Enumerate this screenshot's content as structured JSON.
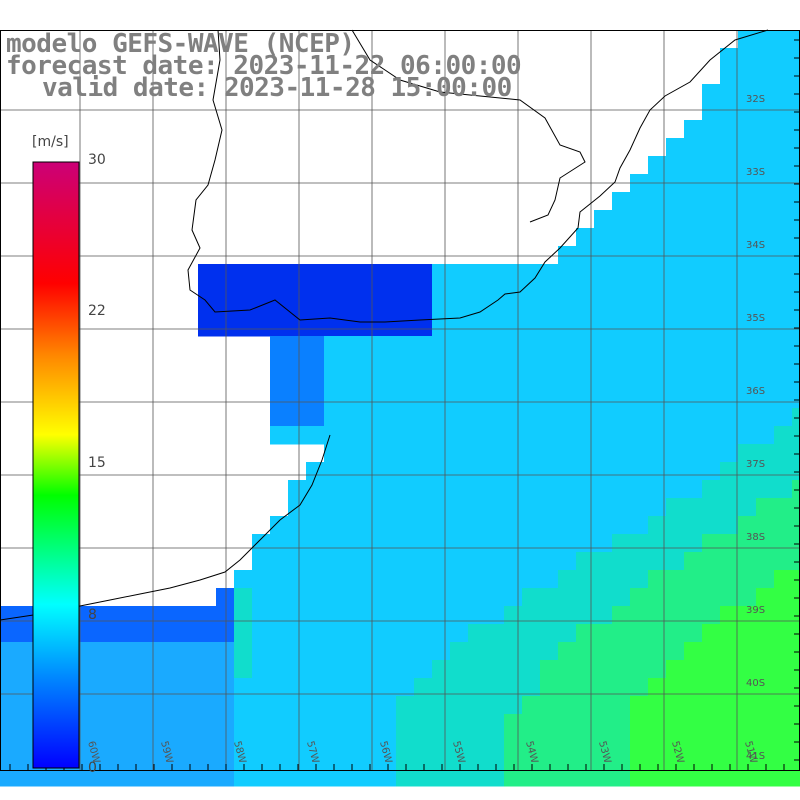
{
  "title": {
    "model": "modelo GEFS-WAVE (NCEP)",
    "forecast": "forecast date: 2023-11-22 06:00:00",
    "valid": "valid date: 2023-11-28 15:00:00"
  },
  "colorbar": {
    "unit": "[m/s]",
    "range": [
      0,
      30
    ],
    "ticks": [
      {
        "value": 30,
        "label": "30"
      },
      {
        "value": 22,
        "label": "22"
      },
      {
        "value": 15,
        "label": "15"
      },
      {
        "value": 8,
        "label": "8"
      },
      {
        "value": 0,
        "label": "0"
      }
    ],
    "colors": [
      "#0000ff",
      "#0088ff",
      "#00ffff",
      "#00ff00",
      "#ffff00",
      "#ff8800",
      "#ff0000",
      "#cc0077"
    ]
  },
  "grid": {
    "lat_labels": [
      "32S",
      "33S",
      "34S",
      "35S",
      "36S",
      "37S",
      "38S",
      "39S",
      "40S",
      "41S"
    ],
    "lon_labels": [
      "60W",
      "59W",
      "58W",
      "57W",
      "56W",
      "55W",
      "54W",
      "53W",
      "52W",
      "51W"
    ]
  },
  "arrow_color": "#ffffff",
  "coast_color": "#000000"
}
